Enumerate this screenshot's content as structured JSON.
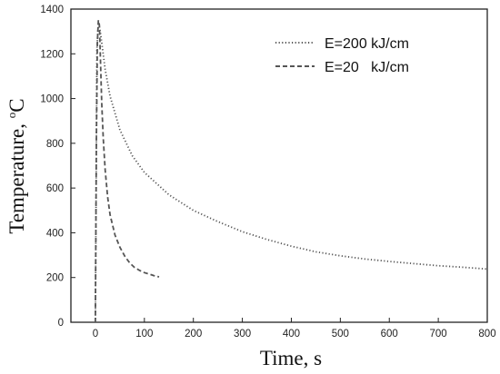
{
  "chart_data": {
    "type": "line",
    "xlabel": "Time, s",
    "ylabel_main": "Temperature, ",
    "ylabel_sup": "o",
    "ylabel_unit": "C",
    "xlim": [
      -50,
      800
    ],
    "ylim": [
      0,
      1400
    ],
    "xticks": [
      0,
      100,
      200,
      300,
      400,
      500,
      600,
      700,
      800
    ],
    "yticks": [
      0,
      200,
      400,
      600,
      800,
      1000,
      1200,
      1400
    ],
    "grid": false,
    "legend_position": "top-right",
    "series": [
      {
        "name": "E=200 kJ/cm",
        "style": "dotted",
        "color": "#555555",
        "x": [
          0,
          3,
          6,
          10,
          20,
          30,
          50,
          75,
          100,
          150,
          200,
          250,
          300,
          350,
          400,
          450,
          500,
          550,
          600,
          650,
          700,
          750,
          800
        ],
        "y": [
          0,
          1220,
          1340,
          1300,
          1130,
          1010,
          860,
          745,
          670,
          570,
          500,
          450,
          405,
          370,
          340,
          315,
          297,
          283,
          272,
          262,
          253,
          246,
          238
        ]
      },
      {
        "name": "E=20   kJ/cm",
        "style": "dashed",
        "color": "#555555",
        "x": [
          0,
          2,
          4,
          6,
          8,
          10,
          13,
          16,
          20,
          25,
          30,
          40,
          50,
          60,
          70,
          80,
          90,
          100,
          110,
          120,
          130
        ],
        "y": [
          0,
          800,
          1250,
          1350,
          1330,
          1200,
          980,
          820,
          680,
          560,
          480,
          390,
          335,
          295,
          265,
          245,
          232,
          222,
          215,
          208,
          203
        ]
      }
    ]
  }
}
